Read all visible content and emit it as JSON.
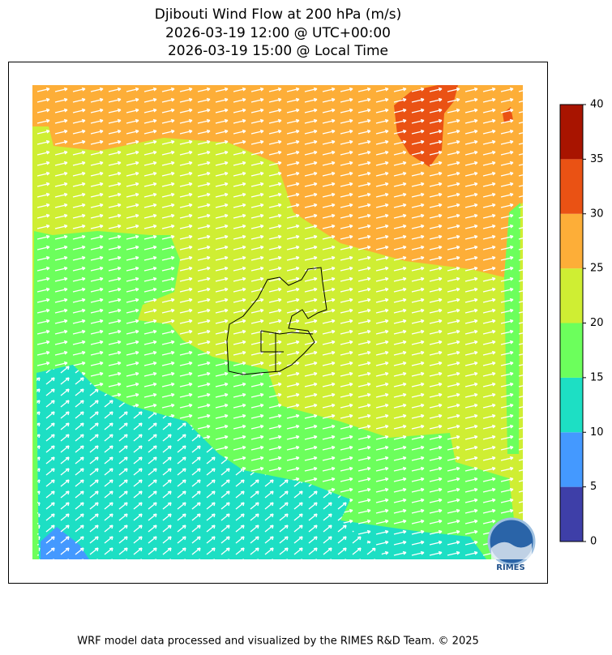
{
  "header": {
    "title_lines": [
      "Djibouti Wind Flow at 200 hPa (m/s)",
      "2026-03-19 12:00 @ UTC+00:00",
      "2026-03-19 15:00 @ Local Time"
    ]
  },
  "colorbar": {
    "lim": [
      0,
      40
    ],
    "ticks": [
      0,
      5,
      10,
      15,
      20,
      25,
      30,
      35,
      40
    ],
    "colors": [
      "#3e3fa8",
      "#4499ff",
      "#1ddfc4",
      "#6cff5c",
      "#cfee33",
      "#fdae38",
      "#ea5214",
      "#a81400"
    ]
  },
  "logo": {
    "text": "RIMES"
  },
  "footer": {
    "text": "WRF model data processed and visualized by the RIMES R&D Team. © 2025"
  }
}
